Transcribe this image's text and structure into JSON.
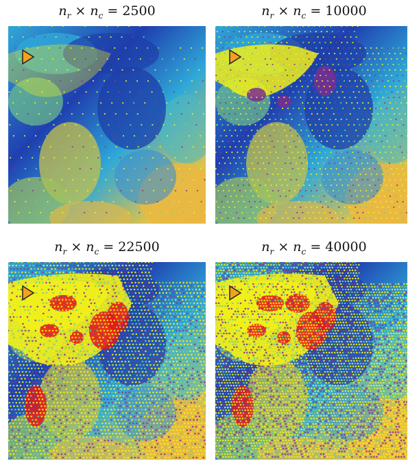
{
  "panels": [
    {
      "prefix": "n",
      "sub1": "r",
      "times": "×",
      "var2": "n",
      "sub2": "c",
      "equals": "=",
      "value": "2500",
      "density": 1
    },
    {
      "prefix": "n",
      "sub1": "r",
      "times": "×",
      "var2": "n",
      "sub2": "c",
      "equals": "=",
      "value": "10000",
      "density": 2
    },
    {
      "prefix": "n",
      "sub1": "r",
      "times": "×",
      "var2": "n",
      "sub2": "c",
      "equals": "=",
      "value": "22500",
      "density": 3
    },
    {
      "prefix": "n",
      "sub1": "r",
      "times": "×",
      "var2": "n",
      "sub2": "c",
      "equals": "=",
      "value": "40000",
      "density": 4
    }
  ],
  "colors": {
    "terrain_low": "#1f3fb0",
    "terrain_mid": "#2fa8d8",
    "terrain_high": "#e0c34a",
    "explored": "#f2ef1a",
    "target": "#e81414",
    "marker": "#f4a11d"
  }
}
